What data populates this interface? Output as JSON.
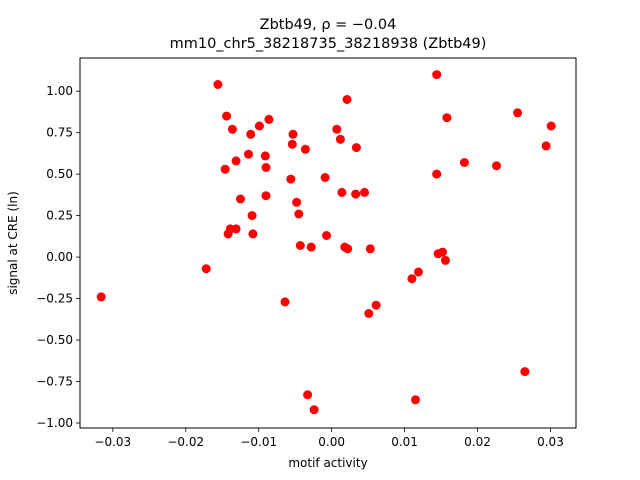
{
  "chart_data": {
    "type": "scatter",
    "title": "Zbtb49, ρ = −0.04",
    "subtitle": "mm10_chr5_38218735_38218938 (Zbtb49)",
    "xlabel": "motif activity",
    "ylabel": "signal at CRE (ln)",
    "xlim": [
      -0.0345,
      0.0335
    ],
    "ylim": [
      -1.03,
      1.2
    ],
    "xticks": [
      -0.03,
      -0.02,
      -0.01,
      0.0,
      0.01,
      0.02,
      0.03
    ],
    "xtick_labels": [
      "−0.03",
      "−0.02",
      "−0.01",
      "0.00",
      "0.01",
      "0.02",
      "0.03"
    ],
    "yticks": [
      -1.0,
      -0.75,
      -0.5,
      -0.25,
      0.0,
      0.25,
      0.5,
      0.75,
      1.0
    ],
    "ytick_labels": [
      "−1.00",
      "−0.75",
      "−0.50",
      "−0.25",
      "0.00",
      "0.25",
      "0.50",
      "0.75",
      "1.00"
    ],
    "grid": false,
    "marker_color": "#ff0000",
    "points": [
      [
        -0.0316,
        -0.24
      ],
      [
        -0.0172,
        -0.07
      ],
      [
        -0.0156,
        1.04
      ],
      [
        -0.0146,
        0.53
      ],
      [
        -0.0144,
        0.85
      ],
      [
        -0.0142,
        0.14
      ],
      [
        -0.0139,
        0.17
      ],
      [
        -0.0136,
        0.77
      ],
      [
        -0.0131,
        0.58
      ],
      [
        -0.0131,
        0.17
      ],
      [
        -0.0125,
        0.35
      ],
      [
        -0.0114,
        0.62
      ],
      [
        -0.0111,
        0.74
      ],
      [
        -0.0109,
        0.25
      ],
      [
        -0.0108,
        0.14
      ],
      [
        -0.0099,
        0.79
      ],
      [
        -0.0091,
        0.61
      ],
      [
        -0.009,
        0.54
      ],
      [
        -0.009,
        0.37
      ],
      [
        -0.0086,
        0.83
      ],
      [
        -0.0064,
        -0.27
      ],
      [
        -0.0056,
        0.47
      ],
      [
        -0.0054,
        0.68
      ],
      [
        -0.0053,
        0.74
      ],
      [
        -0.0048,
        0.33
      ],
      [
        -0.0045,
        0.26
      ],
      [
        -0.0043,
        0.07
      ],
      [
        -0.0036,
        0.65
      ],
      [
        -0.0033,
        -0.83
      ],
      [
        -0.0028,
        0.06
      ],
      [
        -0.0024,
        -0.92
      ],
      [
        -0.0009,
        0.48
      ],
      [
        -0.0007,
        0.13
      ],
      [
        0.0007,
        0.77
      ],
      [
        0.0012,
        0.71
      ],
      [
        0.0014,
        0.39
      ],
      [
        0.0018,
        0.06
      ],
      [
        0.0021,
        0.95
      ],
      [
        0.0022,
        0.05
      ],
      [
        0.0033,
        0.38
      ],
      [
        0.0034,
        0.66
      ],
      [
        0.0045,
        0.39
      ],
      [
        0.0051,
        -0.34
      ],
      [
        0.0053,
        0.05
      ],
      [
        0.0061,
        -0.29
      ],
      [
        0.011,
        -0.13
      ],
      [
        0.0115,
        -0.86
      ],
      [
        0.0119,
        -0.09
      ],
      [
        0.0144,
        1.1
      ],
      [
        0.0144,
        0.5
      ],
      [
        0.0146,
        0.02
      ],
      [
        0.0152,
        0.03
      ],
      [
        0.0156,
        -0.02
      ],
      [
        0.0158,
        0.84
      ],
      [
        0.0182,
        0.57
      ],
      [
        0.0226,
        0.55
      ],
      [
        0.0255,
        0.87
      ],
      [
        0.0265,
        -0.69
      ],
      [
        0.0294,
        0.67
      ],
      [
        0.0301,
        0.79
      ]
    ]
  }
}
